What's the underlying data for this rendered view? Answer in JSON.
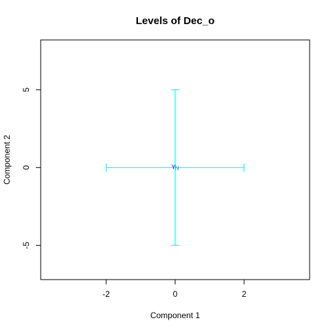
{
  "chart_data": {
    "type": "scatter",
    "title": "Levels of Dec_o",
    "xlabel": "Component 1",
    "ylabel": "Component 2",
    "xlim": [
      -3.9,
      3.9
    ],
    "ylim": [
      -7.2,
      8.2
    ],
    "x_ticks": [
      -2,
      0,
      2
    ],
    "y_ticks": [
      -5,
      0,
      5
    ],
    "points": [
      {
        "label": "Y",
        "x": -0.05,
        "y": 0.03,
        "color": "#0000ff"
      },
      {
        "label": "N",
        "x": 0.05,
        "y": -0.03,
        "color": "#1e90ff"
      }
    ],
    "error_bars": {
      "color": "#00ffff",
      "center": [
        0,
        0
      ],
      "x_range": [
        -2,
        2
      ],
      "y_range": [
        -5,
        5
      ]
    },
    "grid": false,
    "legend": "none"
  }
}
